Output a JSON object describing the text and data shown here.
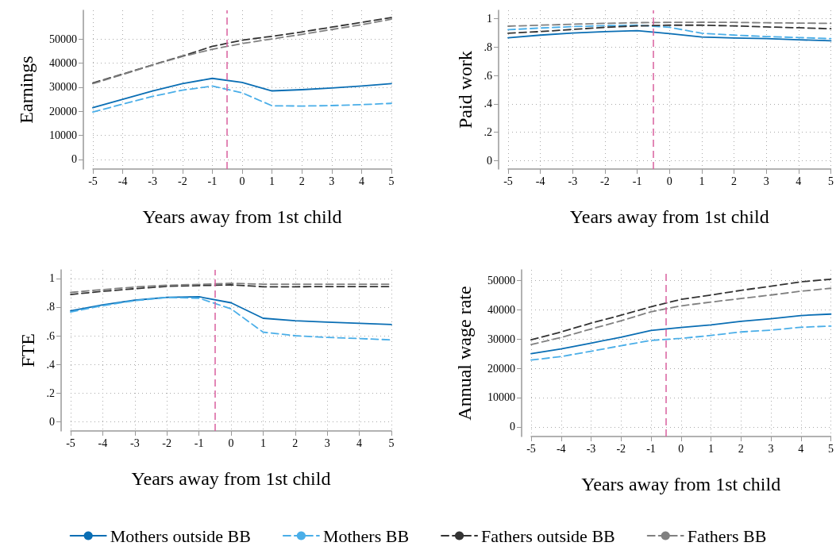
{
  "chart_data": [
    {
      "type": "line",
      "xlabel": "Years away from 1st child",
      "ylabel": "Earnings",
      "x": [
        -5,
        -4,
        -3,
        -2,
        -1,
        0,
        1,
        2,
        3,
        4,
        5
      ],
      "xlim": [
        -5,
        5
      ],
      "xticks": [
        -5,
        -4,
        -3,
        -2,
        -1,
        0,
        1,
        2,
        3,
        4,
        5
      ],
      "ylim": [
        -4000,
        62000
      ],
      "yticks": [
        0,
        10000,
        20000,
        30000,
        40000,
        50000
      ],
      "grid": true,
      "legend": false,
      "marker": "none",
      "ref_lines": [
        {
          "axis": "x",
          "value": -0.5,
          "color": "#d9609f",
          "line_style": "dashed"
        }
      ],
      "series": [
        {
          "color": "#0a6eb4",
          "line_style": "solid",
          "values": [
            21500,
            25000,
            28500,
            31500,
            33700,
            32000,
            28500,
            29000,
            29700,
            30500,
            31500
          ]
        },
        {
          "color": "#4aaee8",
          "line_style": "dashed",
          "values": [
            19700,
            23000,
            26200,
            28800,
            30500,
            27700,
            22300,
            22200,
            22400,
            22800,
            23300
          ]
        },
        {
          "color": "#333333",
          "line_style": "dashed",
          "values": [
            31800,
            35500,
            39300,
            43000,
            47000,
            49600,
            51200,
            53000,
            55000,
            57000,
            59000
          ]
        },
        {
          "color": "#808080",
          "line_style": "dashed",
          "values": [
            31500,
            35300,
            39300,
            42800,
            45800,
            48200,
            50100,
            52000,
            54000,
            56000,
            58300
          ]
        }
      ]
    },
    {
      "type": "line",
      "xlabel": "Years away from 1st child",
      "ylabel": "Paid work",
      "x": [
        -5,
        -4,
        -3,
        -2,
        -1,
        0,
        1,
        2,
        3,
        4,
        5
      ],
      "xlim": [
        -5,
        5
      ],
      "xticks": [
        -5,
        -4,
        -3,
        -2,
        -1,
        0,
        1,
        2,
        3,
        4,
        5
      ],
      "ylim": [
        -0.06,
        1.06
      ],
      "yticks": [
        0,
        {
          "value": 0.2,
          "label": ".2"
        },
        {
          "value": 0.4,
          "label": ".4"
        },
        {
          "value": 0.6,
          "label": ".6"
        },
        {
          "value": 0.8,
          "label": ".8"
        },
        1
      ],
      "grid": true,
      "legend": false,
      "marker": "none",
      "ref_lines": [
        {
          "axis": "x",
          "value": -0.5,
          "color": "#d9609f",
          "line_style": "dashed"
        }
      ],
      "series": [
        {
          "color": "#0a6eb4",
          "line_style": "solid",
          "values": [
            0.866,
            0.885,
            0.9,
            0.91,
            0.916,
            0.895,
            0.872,
            0.865,
            0.86,
            0.852,
            0.845
          ]
        },
        {
          "color": "#4aaee8",
          "line_style": "dashed",
          "values": [
            0.923,
            0.935,
            0.945,
            0.952,
            0.955,
            0.94,
            0.898,
            0.885,
            0.875,
            0.868,
            0.86
          ]
        },
        {
          "color": "#333333",
          "line_style": "dashed",
          "values": [
            0.898,
            0.91,
            0.925,
            0.94,
            0.95,
            0.955,
            0.955,
            0.95,
            0.943,
            0.937,
            0.93
          ]
        },
        {
          "color": "#808080",
          "line_style": "dashed",
          "values": [
            0.948,
            0.955,
            0.962,
            0.968,
            0.973,
            0.975,
            0.976,
            0.975,
            0.972,
            0.97,
            0.968
          ]
        }
      ]
    },
    {
      "type": "line",
      "xlabel": "Years away from 1st child",
      "ylabel": "FTE",
      "x": [
        -5,
        -4,
        -3,
        -2,
        -1,
        0,
        1,
        2,
        3,
        4,
        5
      ],
      "xlim": [
        -5,
        5
      ],
      "xticks": [
        -5,
        -4,
        -3,
        -2,
        -1,
        0,
        1,
        2,
        3,
        4,
        5
      ],
      "ylim": [
        -0.065,
        1.06
      ],
      "yticks": [
        0,
        {
          "value": 0.2,
          "label": ".2"
        },
        {
          "value": 0.4,
          "label": ".4"
        },
        {
          "value": 0.6,
          "label": ".6"
        },
        {
          "value": 0.8,
          "label": ".8"
        },
        1
      ],
      "grid": true,
      "legend": false,
      "marker": "none",
      "ref_lines": [
        {
          "axis": "x",
          "value": -0.5,
          "color": "#d9609f",
          "line_style": "dashed"
        }
      ],
      "series": [
        {
          "color": "#0a6eb4",
          "line_style": "solid",
          "values": [
            0.774,
            0.815,
            0.848,
            0.868,
            0.872,
            0.83,
            0.722,
            0.705,
            0.695,
            0.687,
            0.678
          ]
        },
        {
          "color": "#4aaee8",
          "line_style": "dashed",
          "values": [
            0.765,
            0.81,
            0.845,
            0.867,
            0.862,
            0.788,
            0.625,
            0.6,
            0.588,
            0.58,
            0.571
          ]
        },
        {
          "color": "#333333",
          "line_style": "dashed",
          "values": [
            0.888,
            0.91,
            0.928,
            0.945,
            0.95,
            0.955,
            0.942,
            0.942,
            0.943,
            0.943,
            0.943
          ]
        },
        {
          "color": "#808080",
          "line_style": "dashed",
          "values": [
            0.902,
            0.922,
            0.94,
            0.952,
            0.958,
            0.966,
            0.96,
            0.96,
            0.96,
            0.96,
            0.96
          ]
        }
      ]
    },
    {
      "type": "line",
      "xlabel": "Years away from 1st child",
      "ylabel": "Annual wage rate",
      "x": [
        -5,
        -4,
        -3,
        -2,
        -1,
        0,
        1,
        2,
        3,
        4,
        5
      ],
      "xlim": [
        -5,
        5
      ],
      "xticks": [
        -5,
        -4,
        -3,
        -2,
        -1,
        0,
        1,
        2,
        3,
        4,
        5
      ],
      "ylim": [
        -3300,
        53600
      ],
      "yticks": [
        0,
        10000,
        20000,
        30000,
        40000,
        50000
      ],
      "grid": true,
      "legend": "bottom",
      "marker": "none",
      "ref_lines": [
        {
          "axis": "x",
          "value": -0.5,
          "color": "#d9609f",
          "line_style": "dashed"
        }
      ],
      "series": [
        {
          "name": "Mothers outside BB",
          "color": "#0a6eb4",
          "line_style": "solid",
          "values": [
            25000,
            26600,
            28600,
            30600,
            32900,
            33900,
            34800,
            36000,
            36900,
            38000,
            38500
          ]
        },
        {
          "name": "Mothers BB",
          "color": "#4aaee8",
          "line_style": "dashed",
          "values": [
            22800,
            24000,
            25800,
            27700,
            29500,
            30200,
            31200,
            32400,
            33000,
            34000,
            34400
          ]
        },
        {
          "name": "Fathers outside BB",
          "color": "#333333",
          "line_style": "dashed",
          "values": [
            29700,
            32400,
            35400,
            38100,
            41000,
            43500,
            45000,
            46600,
            48000,
            49500,
            50400
          ]
        },
        {
          "name": "Fathers BB",
          "color": "#808080",
          "line_style": "dashed",
          "values": [
            28100,
            30500,
            33400,
            36200,
            39300,
            41300,
            42600,
            43800,
            45000,
            46300,
            47300
          ]
        }
      ]
    }
  ]
}
